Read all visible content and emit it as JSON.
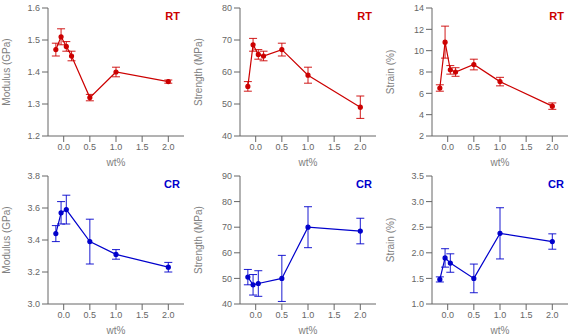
{
  "chart_data": [
    {
      "type": "line",
      "annotation": "RT",
      "color": "#cc0000",
      "marker": "o",
      "xlabel": "wt%",
      "ylabel": "Modulus (GPa)",
      "x": [
        -0.15,
        -0.05,
        0.05,
        0.15,
        0.5,
        1.0,
        2.0
      ],
      "values": [
        1.47,
        1.51,
        1.48,
        1.45,
        1.32,
        1.4,
        1.37
      ],
      "errors": [
        0.02,
        0.025,
        0.015,
        0.015,
        0.01,
        0.015,
        0.005
      ],
      "xlim": [
        -0.3,
        2.3
      ],
      "xticks": [
        {
          "value": 0.0,
          "label": "0.0"
        },
        0.5,
        {
          "value": 1.0,
          "label": "1.0"
        },
        1.5,
        {
          "value": 2.0,
          "label": "2.0"
        }
      ],
      "ylim": [
        1.2,
        1.6
      ],
      "yticks": [
        1.2,
        1.3,
        1.4,
        1.5,
        1.6
      ]
    },
    {
      "type": "line",
      "annotation": "RT",
      "color": "#cc0000",
      "marker": "o",
      "xlabel": "wt%",
      "ylabel": "Strength (MPa)",
      "x": [
        -0.15,
        -0.05,
        0.05,
        0.15,
        0.5,
        1.0,
        2.0
      ],
      "values": [
        55.5,
        68.5,
        65.5,
        65.0,
        67.0,
        59.0,
        49.0
      ],
      "errors": [
        1.5,
        2.0,
        1.5,
        1.5,
        2.0,
        2.5,
        3.5
      ],
      "xlim": [
        -0.3,
        2.3
      ],
      "xticks": [
        {
          "value": 0.0,
          "label": "0.0"
        },
        0.5,
        {
          "value": 1.0,
          "label": "1.0"
        },
        1.5,
        {
          "value": 2.0,
          "label": "2.0"
        }
      ],
      "ylim": [
        40,
        80
      ],
      "yticks": [
        40,
        50,
        60,
        70,
        80
      ]
    },
    {
      "type": "line",
      "annotation": "RT",
      "color": "#cc0000",
      "marker": "o",
      "xlabel": "wt%",
      "ylabel": "Strain (%)",
      "x": [
        -0.15,
        -0.05,
        0.05,
        0.15,
        0.5,
        1.0,
        2.0
      ],
      "values": [
        6.5,
        10.8,
        8.2,
        8.0,
        8.7,
        7.1,
        4.8
      ],
      "errors": [
        0.3,
        1.5,
        0.4,
        0.4,
        0.5,
        0.4,
        0.3
      ],
      "xlim": [
        -0.3,
        2.3
      ],
      "xticks": [
        {
          "value": 0.0,
          "label": "0.0"
        },
        0.5,
        {
          "value": 1.0,
          "label": "1.0"
        },
        1.5,
        {
          "value": 2.0,
          "label": "2.0"
        }
      ],
      "ylim": [
        2,
        14
      ],
      "yticks": [
        2,
        4,
        6,
        8,
        10,
        12,
        14
      ]
    },
    {
      "type": "line",
      "annotation": "CR",
      "color": "#0000cc",
      "marker": "o",
      "xlabel": "wt%",
      "ylabel": "Modulus (GPa)",
      "x": [
        -0.15,
        -0.05,
        0.05,
        0.5,
        1.0,
        2.0
      ],
      "values": [
        3.44,
        3.57,
        3.59,
        3.39,
        3.31,
        3.23
      ],
      "errors": [
        0.05,
        0.07,
        0.09,
        0.14,
        0.03,
        0.03
      ],
      "xlim": [
        -0.3,
        2.3
      ],
      "xticks": [
        {
          "value": 0.0,
          "label": "0.0"
        },
        0.5,
        {
          "value": 1.0,
          "label": "1.0"
        },
        1.5,
        {
          "value": 2.0,
          "label": "2.0"
        }
      ],
      "ylim": [
        3.0,
        3.8
      ],
      "yticks": [
        {
          "value": 3.0,
          "label": "3.0"
        },
        3.2,
        3.4,
        3.6,
        3.8
      ]
    },
    {
      "type": "line",
      "annotation": "CR",
      "color": "#0000cc",
      "marker": "o",
      "xlabel": "wt%",
      "ylabel": "Strength (MPa)",
      "x": [
        -0.15,
        -0.05,
        0.05,
        0.5,
        1.0,
        2.0
      ],
      "values": [
        50.5,
        47.5,
        48.0,
        50.0,
        70.0,
        68.5
      ],
      "errors": [
        3.0,
        4.0,
        5.0,
        9.0,
        8.0,
        5.0
      ],
      "xlim": [
        -0.3,
        2.3
      ],
      "xticks": [
        {
          "value": 0.0,
          "label": "0.0"
        },
        0.5,
        {
          "value": 1.0,
          "label": "1.0"
        },
        1.5,
        {
          "value": 2.0,
          "label": "2.0"
        }
      ],
      "ylim": [
        40,
        90
      ],
      "yticks": [
        40,
        50,
        60,
        70,
        80,
        90
      ]
    },
    {
      "type": "line",
      "annotation": "CR",
      "color": "#0000cc",
      "marker": "o",
      "xlabel": "wt%",
      "ylabel": "Strain (%)",
      "x": [
        -0.15,
        -0.05,
        0.05,
        0.5,
        1.0,
        2.0
      ],
      "values": [
        1.48,
        1.9,
        1.8,
        1.5,
        2.38,
        2.22
      ],
      "errors": [
        0.05,
        0.18,
        0.18,
        0.28,
        0.5,
        0.15
      ],
      "xlim": [
        -0.3,
        2.3
      ],
      "xticks": [
        {
          "value": 0.0,
          "label": "0.0"
        },
        0.5,
        {
          "value": 1.0,
          "label": "1.0"
        },
        1.5,
        {
          "value": 2.0,
          "label": "2.0"
        }
      ],
      "ylim": [
        1.0,
        3.5
      ],
      "yticks": [
        {
          "value": 1.0,
          "label": "1.0"
        },
        1.5,
        {
          "value": 2.0,
          "label": "2.0"
        },
        2.5,
        {
          "value": 3.0,
          "label": "3.0"
        },
        3.5
      ]
    }
  ]
}
